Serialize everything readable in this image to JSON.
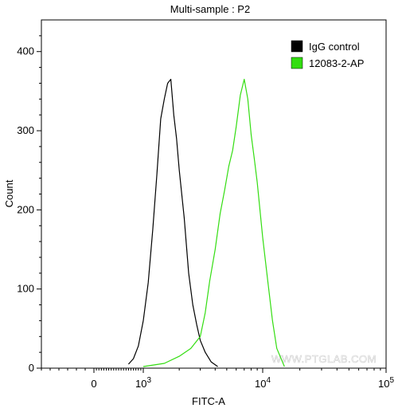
{
  "chart_data": {
    "type": "line",
    "title": "Multi-sample : P2",
    "xlabel": "FITC-A",
    "ylabel": "Count",
    "x_scale": "biexponential",
    "xlim": [
      -300,
      100000
    ],
    "ylim": [
      0,
      440
    ],
    "x_ticks": [
      {
        "value": 0,
        "label": "0"
      },
      {
        "value": 1000,
        "label": "10",
        "exp": "3"
      },
      {
        "value": 10000,
        "label": "10",
        "exp": "4"
      },
      {
        "value": 100000,
        "label": "10",
        "exp": "5"
      }
    ],
    "y_ticks": [
      0,
      100,
      200,
      300,
      400
    ],
    "legend_position": "top-right",
    "series": [
      {
        "name": "IgG control",
        "color": "#000000",
        "x": [
          700,
          800,
          900,
          1000,
          1100,
          1200,
          1300,
          1400,
          1500,
          1600,
          1700,
          1800,
          1900,
          2000,
          2200,
          2400,
          2600,
          2800,
          3000,
          3300,
          3700,
          4200
        ],
        "y": [
          5,
          12,
          28,
          60,
          108,
          175,
          245,
          315,
          340,
          360,
          365,
          320,
          290,
          250,
          190,
          120,
          80,
          55,
          35,
          20,
          8,
          2
        ]
      },
      {
        "name": "12083-2-AP",
        "color": "#33dd11",
        "x": [
          1000,
          1500,
          2000,
          2500,
          3000,
          3300,
          3600,
          4000,
          4400,
          4800,
          5200,
          5600,
          6000,
          6500,
          7000,
          7500,
          8000,
          8500,
          9000,
          10000,
          11000,
          12000,
          13000,
          15000
        ],
        "y": [
          2,
          6,
          15,
          25,
          40,
          70,
          110,
          150,
          195,
          225,
          255,
          275,
          305,
          345,
          365,
          340,
          295,
          265,
          235,
          165,
          110,
          60,
          25,
          2
        ]
      }
    ]
  },
  "watermark": "WWW.PTGLAB.COM",
  "colors": {
    "axis": "#000000",
    "watermark": "#d0d0d0"
  }
}
